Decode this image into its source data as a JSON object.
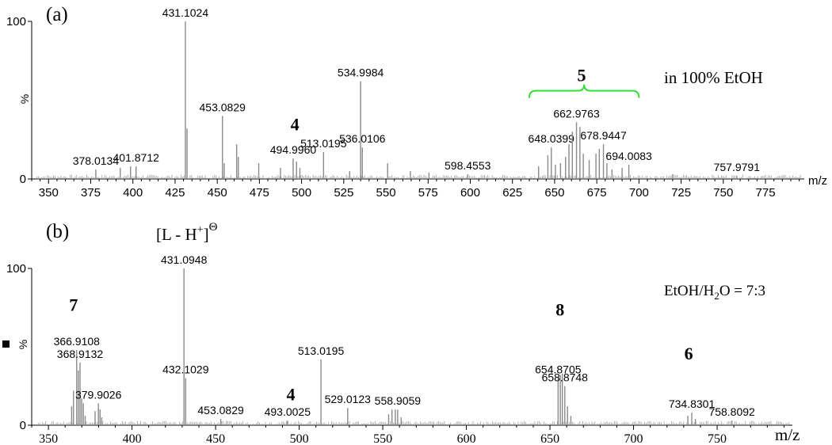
{
  "chart_data": [
    {
      "type": "bar",
      "panel_label": "(a)",
      "annotation": "in 100% EtOH",
      "xlabel": "m/z",
      "ylabel": "%",
      "xlim": [
        340,
        798
      ],
      "ylim": [
        0,
        100
      ],
      "x_ticks": [
        350,
        375,
        400,
        425,
        450,
        475,
        500,
        525,
        550,
        575,
        600,
        625,
        650,
        675,
        700,
        725,
        750,
        775
      ],
      "y_ticks": [
        0,
        100
      ],
      "peaks": [
        {
          "x": 378.0134,
          "y": 6,
          "label": "378.0134"
        },
        {
          "x": 392.5,
          "y": 7
        },
        {
          "x": 398.6,
          "y": 8
        },
        {
          "x": 401.8712,
          "y": 8,
          "label": "401.8712"
        },
        {
          "x": 431.1024,
          "y": 100,
          "label": "431.1024"
        },
        {
          "x": 432.1,
          "y": 32
        },
        {
          "x": 453.0829,
          "y": 40,
          "label": "453.0829"
        },
        {
          "x": 454.1,
          "y": 10
        },
        {
          "x": 461.5,
          "y": 22
        },
        {
          "x": 462.5,
          "y": 14
        },
        {
          "x": 474.6,
          "y": 10
        },
        {
          "x": 487.5,
          "y": 7
        },
        {
          "x": 494.996,
          "y": 13,
          "label": "494.9960"
        },
        {
          "x": 497.0,
          "y": 11
        },
        {
          "x": 499.0,
          "y": 7
        },
        {
          "x": 513.0195,
          "y": 17,
          "label": "513.0195"
        },
        {
          "x": 528.5,
          "y": 5
        },
        {
          "x": 534.9984,
          "y": 62,
          "label": "534.9984"
        },
        {
          "x": 536.0106,
          "y": 20,
          "label": "536.0106"
        },
        {
          "x": 551.0,
          "y": 10
        },
        {
          "x": 564.5,
          "y": 5
        },
        {
          "x": 575.5,
          "y": 4
        },
        {
          "x": 598.4553,
          "y": 3,
          "label": "598.4553"
        },
        {
          "x": 640.5,
          "y": 8
        },
        {
          "x": 646.0,
          "y": 15
        },
        {
          "x": 648.0399,
          "y": 20,
          "label": "648.0399"
        },
        {
          "x": 650.5,
          "y": 9
        },
        {
          "x": 653.5,
          "y": 10
        },
        {
          "x": 656.5,
          "y": 14
        },
        {
          "x": 658.5,
          "y": 22
        },
        {
          "x": 660.5,
          "y": 30
        },
        {
          "x": 662.9763,
          "y": 36,
          "label": "662.9763"
        },
        {
          "x": 665.0,
          "y": 33
        },
        {
          "x": 667.0,
          "y": 16
        },
        {
          "x": 670.5,
          "y": 12
        },
        {
          "x": 674.5,
          "y": 16
        },
        {
          "x": 676.5,
          "y": 19
        },
        {
          "x": 678.9447,
          "y": 22,
          "label": "678.9447"
        },
        {
          "x": 681.0,
          "y": 10
        },
        {
          "x": 684.0,
          "y": 6
        },
        {
          "x": 690.0,
          "y": 7
        },
        {
          "x": 694.0083,
          "y": 9,
          "label": "694.0083"
        },
        {
          "x": 720.0,
          "y": 3
        },
        {
          "x": 757.9791,
          "y": 2,
          "label": "757.9791"
        }
      ],
      "compound_labels": [
        {
          "text": "4",
          "x": 496,
          "y": 31
        },
        {
          "text": "5",
          "x": 666,
          "y": 62,
          "bracket": [
            635,
            700
          ]
        }
      ]
    },
    {
      "type": "bar",
      "panel_label": "(b)",
      "ion_label": {
        "base": "[L - H",
        "superscript": "+",
        "close": "]",
        "charge": "Θ"
      },
      "annotation": {
        "base": "EtOH/H",
        "subscript": "2",
        "tail": "O = 7:3"
      },
      "xlabel": "m/z",
      "ylabel": "%",
      "xlim": [
        340,
        795
      ],
      "ylim": [
        0,
        100
      ],
      "x_ticks": [
        350,
        400,
        450,
        500,
        550,
        600,
        650,
        700,
        750
      ],
      "y_ticks": [
        0,
        100
      ],
      "peaks": [
        {
          "x": 363.9,
          "y": 12
        },
        {
          "x": 365.0,
          "y": 22
        },
        {
          "x": 366.9108,
          "y": 48,
          "label": "366.9108"
        },
        {
          "x": 367.9,
          "y": 35
        },
        {
          "x": 368.9132,
          "y": 40,
          "label": "368.9132"
        },
        {
          "x": 369.9,
          "y": 17
        },
        {
          "x": 370.9,
          "y": 14
        },
        {
          "x": 372.0,
          "y": 6
        },
        {
          "x": 377.9,
          "y": 9
        },
        {
          "x": 379.9026,
          "y": 14,
          "label": "379.9026"
        },
        {
          "x": 380.9,
          "y": 10
        },
        {
          "x": 381.9,
          "y": 5
        },
        {
          "x": 431.0948,
          "y": 100,
          "label": "431.0948"
        },
        {
          "x": 432.1029,
          "y": 30,
          "label": "432.1029"
        },
        {
          "x": 453.0829,
          "y": 4,
          "label": "453.0829"
        },
        {
          "x": 493.0025,
          "y": 3,
          "label": "493.0025"
        },
        {
          "x": 513.0195,
          "y": 42,
          "label": "513.0195"
        },
        {
          "x": 529.0123,
          "y": 11,
          "label": "529.0123"
        },
        {
          "x": 553.5,
          "y": 7
        },
        {
          "x": 555.5,
          "y": 10
        },
        {
          "x": 557.5,
          "y": 10
        },
        {
          "x": 558.9059,
          "y": 10,
          "label": "558.9059"
        },
        {
          "x": 561.0,
          "y": 5
        },
        {
          "x": 654.8705,
          "y": 30,
          "label": "654.8705"
        },
        {
          "x": 656.2,
          "y": 32
        },
        {
          "x": 657.4,
          "y": 33
        },
        {
          "x": 658.8748,
          "y": 25,
          "label": "658.8748"
        },
        {
          "x": 660.5,
          "y": 12
        },
        {
          "x": 662.5,
          "y": 6
        },
        {
          "x": 732.5,
          "y": 6
        },
        {
          "x": 734.8301,
          "y": 8,
          "label": "734.8301"
        },
        {
          "x": 737.0,
          "y": 4
        },
        {
          "x": 758.8092,
          "y": 3,
          "label": "758.8092"
        }
      ],
      "compound_labels": [
        {
          "text": "7",
          "x": 365,
          "y": 73
        },
        {
          "text": "4",
          "x": 495,
          "y": 16
        },
        {
          "text": "8",
          "x": 656,
          "y": 70
        },
        {
          "text": "6",
          "x": 733,
          "y": 42
        }
      ]
    }
  ]
}
